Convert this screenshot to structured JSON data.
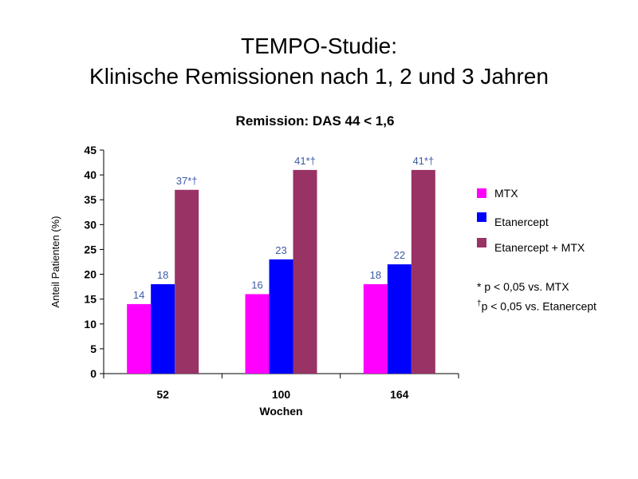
{
  "slide": {
    "title_line_1": "TEMPO-Studie:",
    "title_line_2": "Klinische Remissionen nach 1, 2 und 3 Jahren"
  },
  "colors": {
    "MTX": "#ff00ff",
    "Etanercept": "#0000ff",
    "Etanercept + MTX": "#993366",
    "data_label": "#3d5aa8"
  },
  "chart_data": {
    "type": "bar",
    "title": "Remission: DAS 44 < 1,6",
    "xlabel": "Wochen",
    "ylabel": "Anteil Patienten (%)",
    "ylim": [
      0,
      45
    ],
    "yticks": [
      0,
      5,
      10,
      15,
      20,
      25,
      30,
      35,
      40,
      45
    ],
    "grid": false,
    "legend_position": "right",
    "categories": [
      "52",
      "100",
      "164"
    ],
    "series": [
      {
        "name": "MTX",
        "values": [
          14,
          16,
          18
        ],
        "labels": [
          "14",
          "16",
          "18"
        ]
      },
      {
        "name": "Etanercept",
        "values": [
          18,
          23,
          22
        ],
        "labels": [
          "18",
          "23",
          "22"
        ]
      },
      {
        "name": "Etanercept + MTX",
        "values": [
          37,
          41,
          41
        ],
        "labels": [
          "37*†",
          "41*†",
          "41*†"
        ]
      }
    ]
  },
  "footnotes": {
    "star": "* p < 0,05 vs. MTX",
    "dagger_symbol": "†",
    "dagger_text": "p < 0,05 vs. Etanercept"
  }
}
